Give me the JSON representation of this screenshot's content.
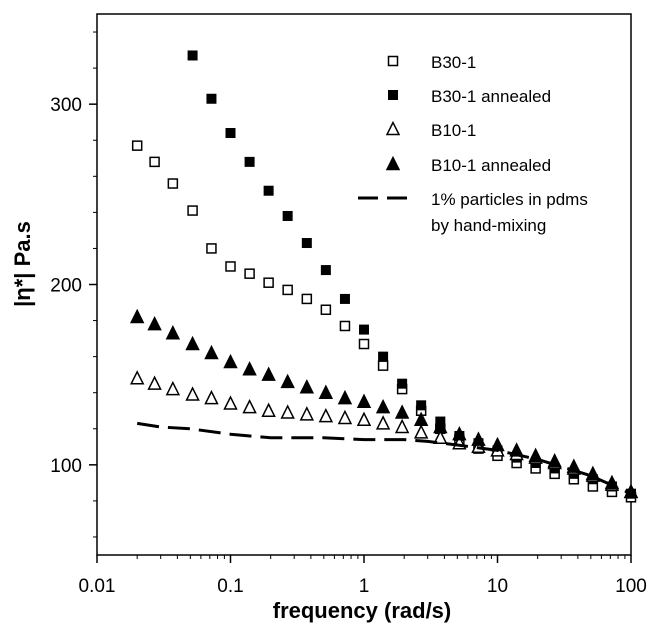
{
  "chart_data": {
    "type": "scatter",
    "xlabel": "frequency (rad/s)",
    "ylabel": "|η*| Pa.s",
    "xscale": "log",
    "xlim": [
      0.01,
      100
    ],
    "ylim": [
      50,
      350
    ],
    "x_ticks": [
      0.01,
      0.1,
      1,
      10,
      100
    ],
    "x_tick_labels": [
      "0.01",
      "0.1",
      "1",
      "10",
      "100"
    ],
    "y_ticks": [
      100,
      200,
      300
    ],
    "y_tick_labels": [
      "100",
      "200",
      "300"
    ],
    "grid": false,
    "legend_position": "top-right",
    "series": [
      {
        "name": "B30-1",
        "marker": "open-square",
        "x": [
          0.02,
          0.027,
          0.037,
          0.052,
          0.072,
          0.1,
          0.139,
          0.193,
          0.268,
          0.373,
          0.518,
          0.72,
          1.0,
          1.39,
          1.93,
          2.68,
          3.73,
          5.18,
          7.2,
          10,
          13.9,
          19.3,
          26.8,
          37.3,
          51.8,
          72,
          100
        ],
        "y": [
          277,
          268,
          256,
          241,
          220,
          210,
          206,
          201,
          197,
          192,
          186,
          177,
          167,
          155,
          142,
          130,
          120,
          114,
          109,
          105,
          101,
          98,
          95,
          92,
          88,
          85,
          82
        ]
      },
      {
        "name": "B30-1 annealed",
        "marker": "filled-square",
        "x": [
          0.052,
          0.072,
          0.1,
          0.139,
          0.193,
          0.268,
          0.373,
          0.518,
          0.72,
          1.0,
          1.39,
          1.93,
          2.68,
          3.73,
          5.18,
          7.2,
          10,
          13.9,
          19.3,
          26.8,
          37.3,
          51.8,
          72,
          100
        ],
        "y": [
          327,
          303,
          284,
          268,
          252,
          238,
          223,
          208,
          192,
          175,
          160,
          145,
          133,
          124,
          116,
          112,
          108,
          104,
          101,
          98,
          95,
          92,
          88,
          84
        ]
      },
      {
        "name": "B10-1",
        "marker": "open-triangle",
        "x": [
          0.02,
          0.027,
          0.037,
          0.052,
          0.072,
          0.1,
          0.139,
          0.193,
          0.268,
          0.373,
          0.518,
          0.72,
          1.0,
          1.39,
          1.93,
          2.68,
          3.73,
          5.18,
          7.2,
          10,
          13.9,
          19.3,
          26.8,
          37.3,
          51.8,
          72,
          100
        ],
        "y": [
          148,
          145,
          142,
          139,
          137,
          134,
          132,
          130,
          129,
          128,
          127,
          126,
          125,
          123,
          121,
          118,
          115,
          112,
          110,
          108,
          106,
          104,
          101,
          98,
          94,
          89,
          85
        ]
      },
      {
        "name": "B10-1 annealed",
        "marker": "filled-triangle",
        "x": [
          0.02,
          0.027,
          0.037,
          0.052,
          0.072,
          0.1,
          0.139,
          0.193,
          0.268,
          0.373,
          0.518,
          0.72,
          1.0,
          1.39,
          1.93,
          2.68,
          3.73,
          5.18,
          7.2,
          10,
          13.9,
          19.3,
          26.8,
          37.3,
          51.8,
          72,
          100
        ],
        "y": [
          182,
          178,
          173,
          167,
          162,
          157,
          153,
          150,
          146,
          143,
          140,
          137,
          135,
          132,
          129,
          125,
          121,
          117,
          114,
          111,
          108,
          105,
          102,
          99,
          95,
          90,
          85
        ]
      },
      {
        "name": "1% particles in pdms\n by hand-mixing",
        "legend_lines": [
          "1% particles in pdms",
          " by hand-mixing"
        ],
        "marker": "dashed-line",
        "x": [
          0.02,
          0.03,
          0.05,
          0.1,
          0.2,
          0.5,
          1,
          2,
          3,
          5,
          10,
          20,
          50,
          100
        ],
        "y": [
          123,
          121,
          120,
          117,
          115,
          115,
          114,
          114,
          113,
          111,
          108,
          103,
          94,
          84
        ]
      }
    ]
  }
}
